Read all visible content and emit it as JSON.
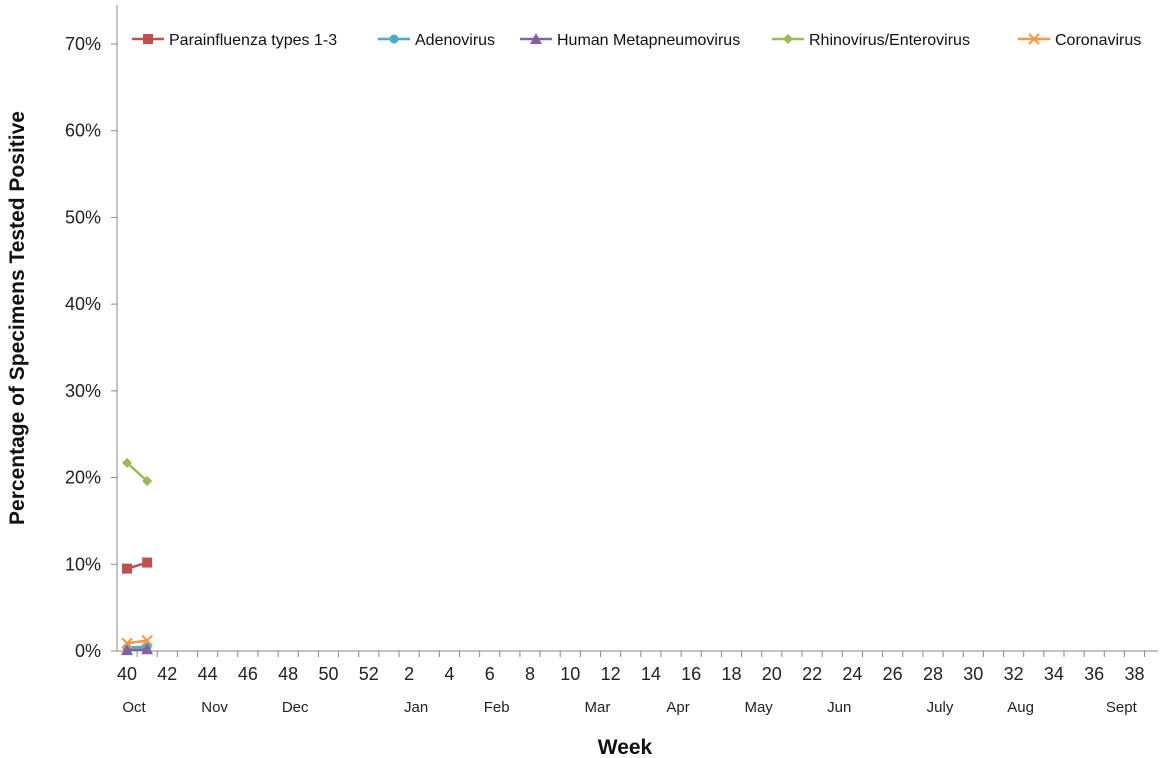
{
  "chart_data": {
    "type": "line",
    "title": "",
    "xlabel": "Week",
    "ylabel": "Percentage of Specimens Tested Positive",
    "ylim": [
      0,
      70
    ],
    "yticks": [
      "0%",
      "10%",
      "20%",
      "30%",
      "40%",
      "50%",
      "60%",
      "70%"
    ],
    "ytick_values": [
      0,
      10,
      20,
      30,
      40,
      50,
      60,
      70
    ],
    "weeks": [
      40,
      41,
      42,
      43,
      44,
      45,
      46,
      47,
      48,
      49,
      50,
      51,
      52,
      1,
      2,
      3,
      4,
      5,
      6,
      7,
      8,
      9,
      10,
      11,
      12,
      13,
      14,
      15,
      16,
      17,
      18,
      19,
      20,
      21,
      22,
      23,
      24,
      25,
      26,
      27,
      28,
      29,
      30,
      31,
      32,
      33,
      34,
      35,
      36,
      37,
      38,
      39
    ],
    "xtick_labels": [
      "40",
      "42",
      "44",
      "46",
      "48",
      "50",
      "52",
      "2",
      "4",
      "6",
      "8",
      "10",
      "12",
      "14",
      "16",
      "18",
      "20",
      "22",
      "24",
      "26",
      "28",
      "30",
      "32",
      "34",
      "36",
      "38"
    ],
    "months": [
      {
        "label": "Oct",
        "week": "40"
      },
      {
        "label": "Nov",
        "week": "44"
      },
      {
        "label": "Dec",
        "week": "48"
      },
      {
        "label": "Jan",
        "week": "2"
      },
      {
        "label": "Feb",
        "week": "6"
      },
      {
        "label": "Mar",
        "week": "11"
      },
      {
        "label": "Apr",
        "week": "15"
      },
      {
        "label": "May",
        "week": "19"
      },
      {
        "label": "Jun",
        "week": "23"
      },
      {
        "label": "July",
        "week": "28"
      },
      {
        "label": "Aug",
        "week": "32"
      },
      {
        "label": "Sept",
        "week": "37"
      }
    ],
    "grid": false,
    "legend_position": "top",
    "series": [
      {
        "name": "Parainfluenza types 1-3",
        "color": "#c0504d",
        "marker": "square",
        "values": [
          9.5,
          10.2
        ]
      },
      {
        "name": "Adenovirus",
        "color": "#4bacc6",
        "marker": "circle",
        "values": [
          0.4,
          0.5
        ]
      },
      {
        "name": "Human Metapneumovirus",
        "color": "#8064a2",
        "marker": "triangle",
        "values": [
          0.1,
          0.2
        ]
      },
      {
        "name": "Rhinovirus/Enterovirus",
        "color": "#9bbb59",
        "marker": "diamond",
        "values": [
          21.7,
          19.6
        ]
      },
      {
        "name": "Coronavirus",
        "color": "#f79646",
        "marker": "x",
        "values": [
          0.9,
          1.2
        ]
      }
    ]
  }
}
